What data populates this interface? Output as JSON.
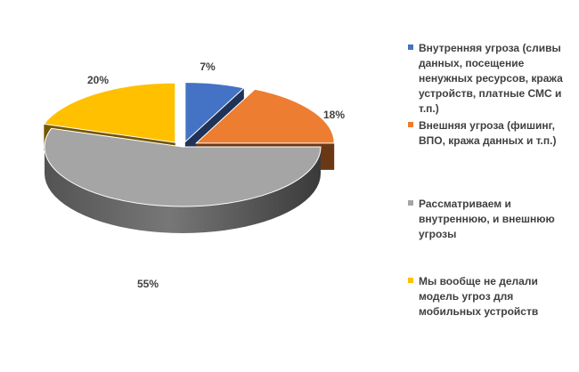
{
  "chart_data": {
    "type": "pie",
    "style": "3d-exploded",
    "title": "",
    "categories": [
      "Внутренняя угроза (сливы данных, посещение ненужных ресурсов, кража устройств, платные СМС и т.п.)",
      "Внешняя угроза (фишинг, ВПО, кража данных и т.п.)",
      "Рассматриваем и внутреннюю, и внешнюю угрозы",
      "Мы вообще не делали модель угроз для мобильных устройств"
    ],
    "values": [
      7,
      18,
      55,
      20
    ],
    "value_labels": [
      "7%",
      "18%",
      "55%",
      "20%"
    ],
    "colors": [
      "#4472C4",
      "#ED7D31",
      "#A5A5A5",
      "#FFC000"
    ],
    "legend_position": "right"
  }
}
